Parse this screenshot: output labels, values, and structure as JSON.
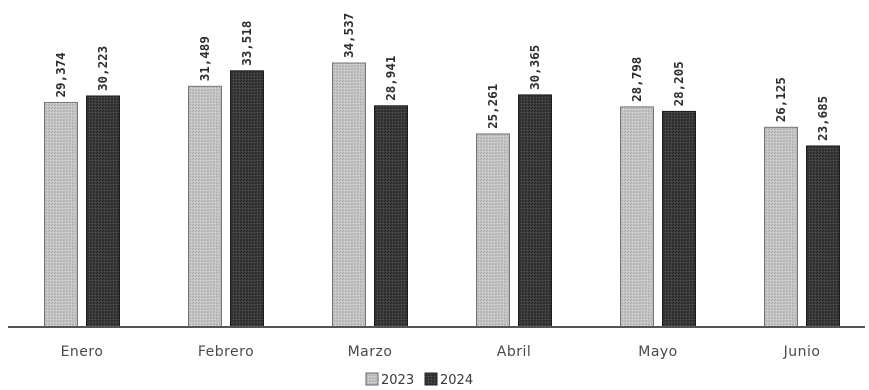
{
  "chart_data": {
    "type": "bar",
    "categories": [
      "Enero",
      "Febrero",
      "Marzo",
      "Abril",
      "Mayo",
      "Junio"
    ],
    "series": [
      {
        "name": "2023",
        "values": [
          29374,
          31489,
          34537,
          25261,
          28798,
          26125
        ],
        "labels": [
          "29,374",
          "31,489",
          "34,537",
          "25,261",
          "28,798",
          "26,125"
        ],
        "color": "#bdbdbd"
      },
      {
        "name": "2024",
        "values": [
          30223,
          33518,
          28941,
          30365,
          28205,
          23685
        ],
        "labels": [
          "30,223",
          "33,518",
          "28,941",
          "30,365",
          "28,205",
          "23,685"
        ],
        "color": "#3b3b3b"
      }
    ],
    "ylim": [
      0,
      36500
    ],
    "grid": false,
    "legend_position": "bottom-center",
    "title": "",
    "xlabel": "",
    "ylabel": ""
  }
}
